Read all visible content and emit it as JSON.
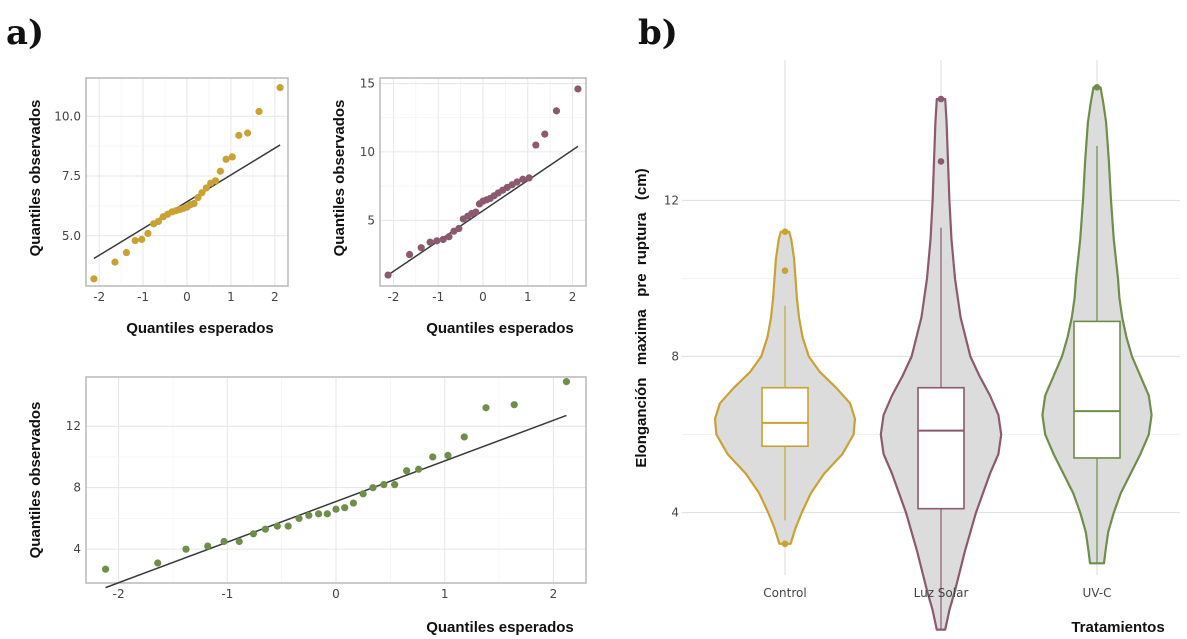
{
  "panel_labels": {
    "a": "a)",
    "b": "b)"
  },
  "chart_data": [
    {
      "type": "scatter",
      "subtype": "qq-plot",
      "panel": "a-top-left",
      "xlabel": "Quantiles esperados",
      "ylabel": "Quantiles observados",
      "color": "#c8a232",
      "xlim": [
        -2.3,
        2.3
      ],
      "ylim": [
        2.9,
        11.6
      ],
      "xticks": [
        -2,
        -1,
        0,
        1,
        2
      ],
      "xtick_labels": [
        "-2",
        "-1",
        "0",
        "1",
        "2"
      ],
      "yticks": [
        5,
        7.5,
        10
      ],
      "ytick_labels": [
        "5.0",
        "7.5",
        "10.0"
      ],
      "grid": true,
      "frame": true,
      "line": {
        "x": [
          -2.12,
          2.12
        ],
        "y": [
          4.05,
          8.8
        ]
      },
      "x": [
        -2.12,
        -1.64,
        -1.38,
        -1.18,
        -1.03,
        -0.89,
        -0.76,
        -0.65,
        -0.54,
        -0.44,
        -0.34,
        -0.25,
        -0.16,
        -0.08,
        0.0,
        0.08,
        0.16,
        0.25,
        0.34,
        0.44,
        0.54,
        0.65,
        0.76,
        0.89,
        1.03,
        1.18,
        1.38,
        1.64,
        2.12
      ],
      "y": [
        3.2,
        3.9,
        4.3,
        4.8,
        4.85,
        5.1,
        5.5,
        5.6,
        5.8,
        5.9,
        6.0,
        6.05,
        6.1,
        6.15,
        6.2,
        6.3,
        6.35,
        6.6,
        6.8,
        7.0,
        7.2,
        7.3,
        7.7,
        8.2,
        8.3,
        9.2,
        9.3,
        10.2,
        11.2
      ]
    },
    {
      "type": "scatter",
      "subtype": "qq-plot",
      "panel": "a-top-right",
      "xlabel": "Quantiles esperados",
      "ylabel": "Quantiles observados",
      "color": "#8b5a6e",
      "xlim": [
        -2.3,
        2.3
      ],
      "ylim": [
        0.2,
        15.4
      ],
      "xticks": [
        -2,
        -1,
        0,
        1,
        2
      ],
      "xtick_labels": [
        "-2",
        "-1",
        "0",
        "1",
        "2"
      ],
      "yticks": [
        5,
        10,
        15
      ],
      "ytick_labels": [
        "5",
        "10",
        "15"
      ],
      "grid": true,
      "frame": true,
      "line": {
        "x": [
          -2.12,
          2.12
        ],
        "y": [
          1.0,
          10.4
        ]
      },
      "x": [
        -2.12,
        -1.64,
        -1.38,
        -1.18,
        -1.03,
        -0.89,
        -0.76,
        -0.65,
        -0.54,
        -0.44,
        -0.34,
        -0.25,
        -0.16,
        -0.08,
        0.0,
        0.08,
        0.16,
        0.25,
        0.34,
        0.44,
        0.54,
        0.65,
        0.76,
        0.89,
        1.03,
        1.18,
        1.38,
        1.64,
        2.12
      ],
      "y": [
        1.0,
        2.5,
        3.0,
        3.4,
        3.5,
        3.6,
        3.8,
        4.2,
        4.4,
        5.1,
        5.3,
        5.5,
        5.6,
        6.2,
        6.4,
        6.5,
        6.6,
        6.8,
        7.0,
        7.2,
        7.4,
        7.6,
        7.8,
        8.0,
        8.1,
        10.5,
        11.3,
        13.0,
        14.6
      ]
    },
    {
      "type": "scatter",
      "subtype": "qq-plot",
      "panel": "a-bottom",
      "xlabel": "Quantiles esperados",
      "ylabel": "Quantiles observados",
      "color": "#6f8d4b",
      "xlim": [
        -2.3,
        2.3
      ],
      "ylim": [
        1.8,
        15.2
      ],
      "xticks": [
        -2,
        -1,
        0,
        1,
        2
      ],
      "xtick_labels": [
        "-2",
        "-1",
        "0",
        "1",
        "2"
      ],
      "yticks": [
        4,
        8,
        12
      ],
      "ytick_labels": [
        "4",
        "8",
        "12"
      ],
      "grid": true,
      "frame": true,
      "line": {
        "x": [
          -2.12,
          2.12
        ],
        "y": [
          1.5,
          12.7
        ]
      },
      "x": [
        -2.12,
        -1.64,
        -1.38,
        -1.18,
        -1.03,
        -0.89,
        -0.76,
        -0.65,
        -0.54,
        -0.44,
        -0.34,
        -0.25,
        -0.16,
        -0.08,
        0.0,
        0.08,
        0.16,
        0.25,
        0.34,
        0.44,
        0.54,
        0.65,
        0.76,
        0.89,
        1.03,
        1.18,
        1.38,
        1.64,
        2.12
      ],
      "y": [
        2.7,
        3.1,
        4.0,
        4.2,
        4.5,
        4.5,
        5.0,
        5.3,
        5.5,
        5.5,
        6.0,
        6.2,
        6.3,
        6.3,
        6.6,
        6.7,
        7.0,
        7.6,
        8.0,
        8.2,
        8.2,
        9.1,
        9.2,
        10.0,
        10.1,
        11.3,
        13.2,
        13.4,
        14.9
      ]
    },
    {
      "type": "violin",
      "panel": "b",
      "xlabel": "Tratamientos",
      "ylabel": "Elonganción   maxima   pre  ruptura   (cm)",
      "categories": [
        "Control",
        "Luz Solar",
        "UV-C"
      ],
      "colors": [
        "#c8a232",
        "#8b5a6e",
        "#6f8d4b"
      ],
      "ylim": [
        2.4,
        15.6
      ],
      "yticks": [
        4,
        8,
        12
      ],
      "ytick_labels": [
        "4",
        "8",
        "12"
      ],
      "grid": true,
      "box": [
        {
          "min": 3.2,
          "q1": 5.7,
          "median": 6.3,
          "q3": 7.2,
          "whisker_low": 3.8,
          "whisker_high": 9.3,
          "max": 11.2,
          "outliers": [
            3.2,
            10.2,
            11.2
          ]
        },
        {
          "min": 1.0,
          "q1": 4.1,
          "median": 6.1,
          "q3": 7.2,
          "whisker_low": 1.0,
          "whisker_high": 11.3,
          "max": 14.6,
          "outliers": [
            13.0,
            14.6
          ]
        },
        {
          "min": 2.7,
          "q1": 5.4,
          "median": 6.6,
          "q3": 8.9,
          "whisker_low": 2.7,
          "whisker_high": 13.4,
          "max": 14.9,
          "outliers": [
            14.9
          ]
        }
      ],
      "density": [
        {
          "y": [
            3.2,
            3.6,
            4.0,
            4.5,
            5.0,
            5.5,
            6.0,
            6.4,
            6.8,
            7.2,
            7.6,
            8.0,
            8.5,
            9.0,
            9.5,
            10.0,
            10.5,
            11.0,
            11.2
          ],
          "w": [
            0.08,
            0.15,
            0.24,
            0.37,
            0.56,
            0.82,
            0.98,
            1.0,
            0.93,
            0.73,
            0.5,
            0.34,
            0.25,
            0.2,
            0.17,
            0.15,
            0.13,
            0.09,
            0.06
          ]
        },
        {
          "y": [
            1.0,
            1.5,
            2.0,
            3.0,
            4.0,
            5.0,
            5.5,
            6.0,
            6.5,
            7.0,
            7.5,
            8.0,
            9.0,
            10.0,
            11.0,
            12.0,
            13.0,
            14.0,
            14.6
          ],
          "w": [
            0.06,
            0.12,
            0.2,
            0.34,
            0.5,
            0.7,
            0.82,
            0.86,
            0.82,
            0.7,
            0.55,
            0.42,
            0.28,
            0.2,
            0.15,
            0.12,
            0.1,
            0.08,
            0.06
          ]
        },
        {
          "y": [
            2.7,
            3.0,
            3.5,
            4.0,
            4.5,
            5.0,
            5.5,
            6.0,
            6.5,
            7.0,
            7.5,
            8.0,
            8.5,
            9.0,
            9.5,
            10.0,
            11.0,
            12.0,
            13.0,
            14.0,
            14.5,
            14.9
          ],
          "w": [
            0.1,
            0.12,
            0.16,
            0.24,
            0.34,
            0.48,
            0.62,
            0.74,
            0.78,
            0.74,
            0.62,
            0.5,
            0.42,
            0.36,
            0.32,
            0.3,
            0.24,
            0.2,
            0.17,
            0.13,
            0.09,
            0.05
          ]
        }
      ]
    }
  ]
}
